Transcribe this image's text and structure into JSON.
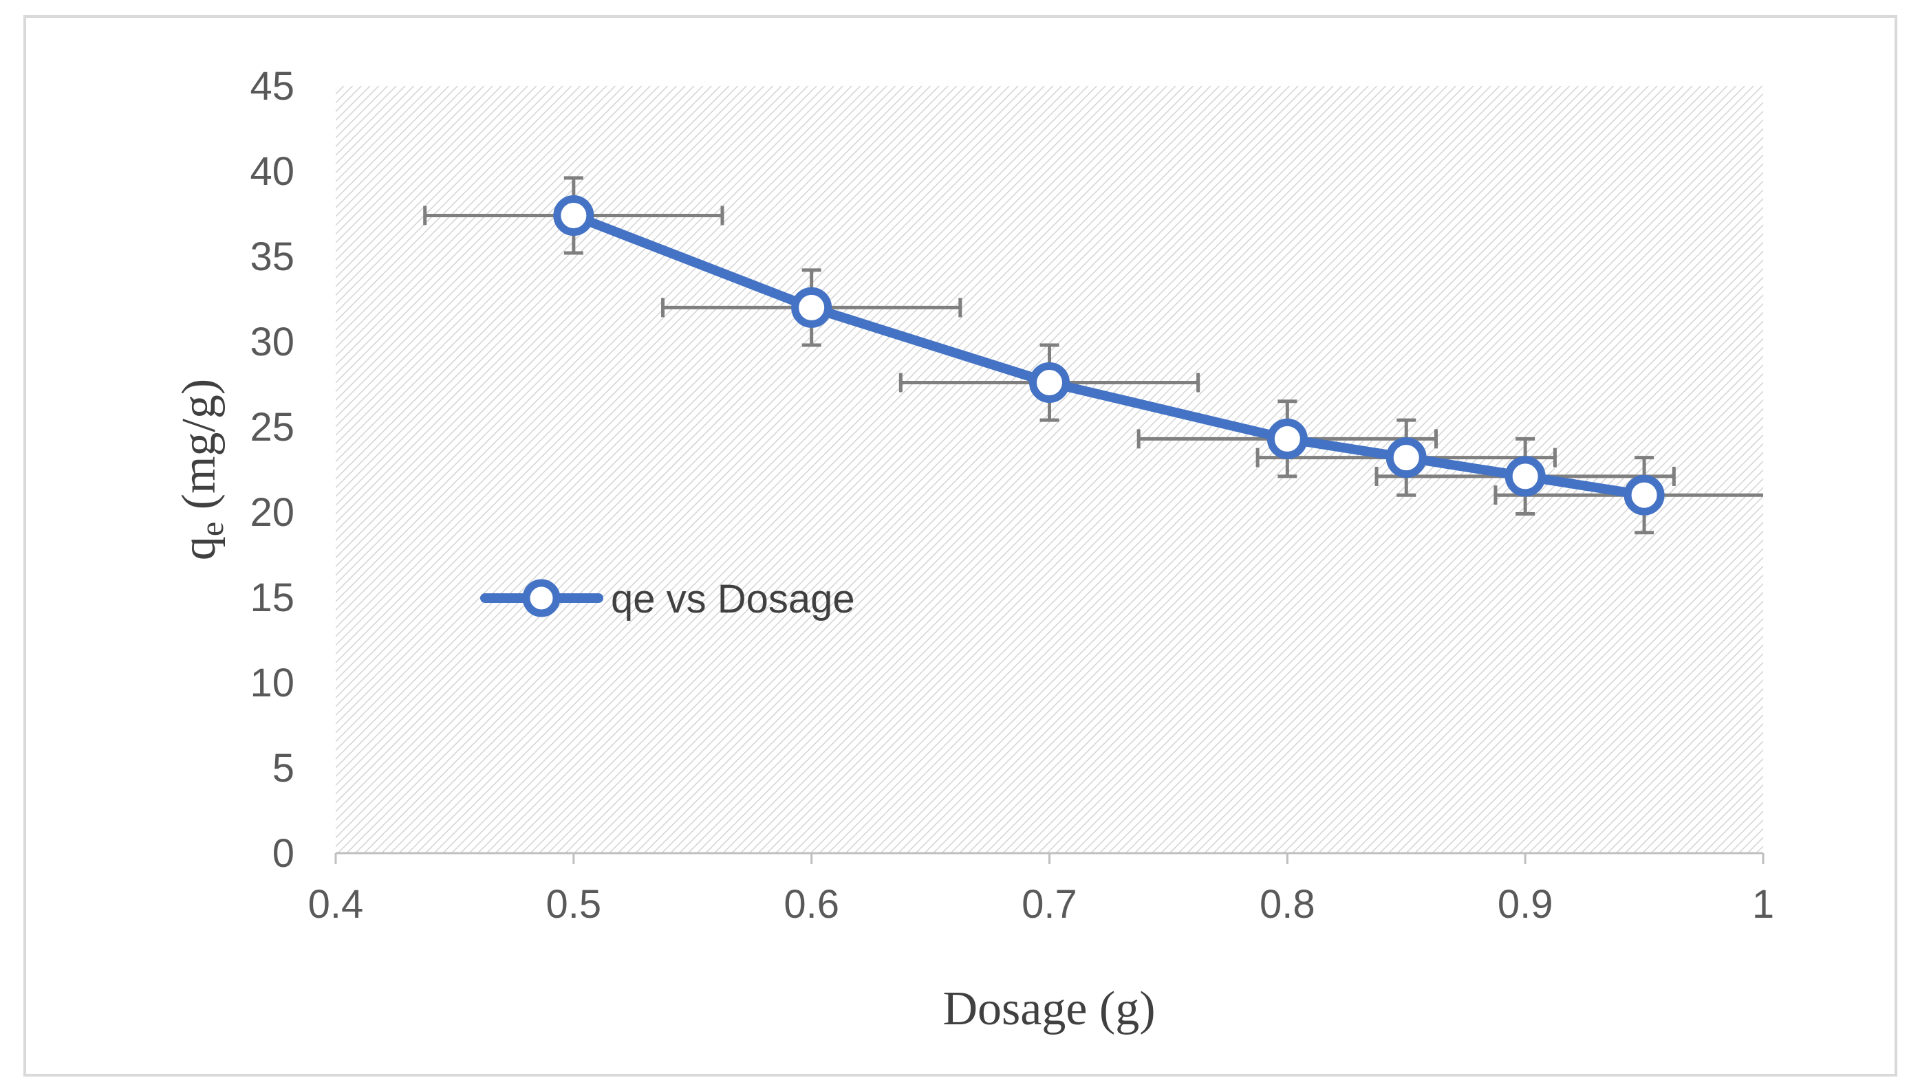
{
  "chart_data": {
    "type": "line",
    "title": "",
    "xlabel": "Dosage (g)",
    "ylabel": "q",
    "ylabel_subscript": "e",
    "ylabel_unit": " (mg/g)",
    "xlim": [
      0.4,
      1.0
    ],
    "ylim": [
      0,
      45
    ],
    "x_ticks": [
      0.4,
      0.5,
      0.6,
      0.7,
      0.8,
      0.9,
      1.0
    ],
    "x_tick_labels": [
      "0.4",
      "0.5",
      "0.6",
      "0.7",
      "0.8",
      "0.9",
      "1"
    ],
    "y_ticks": [
      0,
      5,
      10,
      15,
      20,
      25,
      30,
      35,
      40,
      45
    ],
    "y_tick_labels": [
      "0",
      "5",
      "10",
      "15",
      "20",
      "25",
      "30",
      "35",
      "40",
      "45"
    ],
    "legend_position": "middle-left",
    "series": [
      {
        "name": "qe vs Dosage",
        "color": "#4472C4",
        "x": [
          0.5,
          0.6,
          0.7,
          0.8,
          0.85,
          0.9,
          0.95
        ],
        "y": [
          37.4,
          32.0,
          27.6,
          24.3,
          23.2,
          22.1,
          21.0
        ],
        "x_error": [
          0.0625,
          0.0625,
          0.0625,
          0.0625,
          0.0625,
          0.0625,
          0.0625
        ],
        "y_error": [
          2.2,
          2.2,
          2.2,
          2.2,
          2.2,
          2.2,
          2.2
        ]
      }
    ],
    "colors": {
      "line": "#4472C4",
      "marker_fill": "#FFFFFF",
      "error_bar": "#7F7F7F",
      "axis": "#BFBFBF",
      "hatch": "#D9D9D9",
      "frame": "#D9D9D9"
    }
  }
}
